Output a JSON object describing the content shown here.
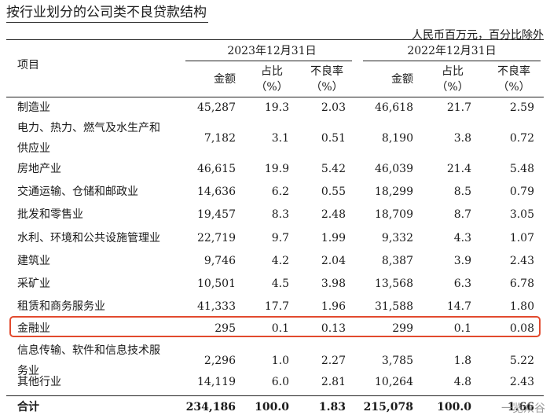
{
  "title": "按行业划分的公司类不良贷款结构",
  "unit_note": "人民币百万元，百分比除外",
  "header": {
    "item_label": "项目",
    "period_2023": "2023年12月31日",
    "period_2022": "2022年12月31日",
    "col_amount": "金额",
    "col_share_1": "占比",
    "col_share_2": "（%）",
    "col_npl": "不良率",
    "col_npl_2": "（%）"
  },
  "rows": [
    {
      "name": [
        "制造业"
      ],
      "a23": "45,287",
      "s23": "19.3",
      "n23": "2.03",
      "a22": "46,618",
      "s22": "21.7",
      "n22": "2.59"
    },
    {
      "name": [
        "电力、热力、燃气及水生产和",
        "供应业"
      ],
      "a23": "7,182",
      "s23": "3.1",
      "n23": "0.51",
      "a22": "8,190",
      "s22": "3.8",
      "n22": "0.72"
    },
    {
      "name": [
        "房地产业"
      ],
      "a23": "46,615",
      "s23": "19.9",
      "n23": "5.42",
      "a22": "46,039",
      "s22": "21.4",
      "n22": "5.48"
    },
    {
      "name": [
        "交通运输、仓储和邮政业"
      ],
      "a23": "14,636",
      "s23": "6.2",
      "n23": "0.55",
      "a22": "18,299",
      "s22": "8.5",
      "n22": "0.79"
    },
    {
      "name": [
        "批发和零售业"
      ],
      "a23": "19,457",
      "s23": "8.3",
      "n23": "2.48",
      "a22": "18,709",
      "s22": "8.7",
      "n22": "3.05"
    },
    {
      "name": [
        "水利、环境和公共设施管理业"
      ],
      "a23": "22,719",
      "s23": "9.7",
      "n23": "1.99",
      "a22": "9,332",
      "s22": "4.3",
      "n22": "1.07"
    },
    {
      "name": [
        "建筑业"
      ],
      "a23": "9,746",
      "s23": "4.2",
      "n23": "2.04",
      "a22": "8,387",
      "s22": "3.9",
      "n22": "2.43"
    },
    {
      "name": [
        "采矿业"
      ],
      "a23": "10,501",
      "s23": "4.5",
      "n23": "3.98",
      "a22": "13,568",
      "s22": "6.3",
      "n22": "6.78"
    },
    {
      "name": [
        "租赁和商务服务业"
      ],
      "a23": "41,333",
      "s23": "17.7",
      "n23": "1.96",
      "a22": "31,588",
      "s22": "14.7",
      "n22": "1.80"
    },
    {
      "name": [
        "金融业"
      ],
      "a23": "295",
      "s23": "0.1",
      "n23": "0.13",
      "a22": "299",
      "s22": "0.1",
      "n22": "0.08"
    },
    {
      "name": [
        "信息传输、软件和信息技术服",
        "务业"
      ],
      "a23": "2,296",
      "s23": "1.0",
      "n23": "2.27",
      "a22": "3,785",
      "s22": "1.8",
      "n22": "5.22"
    },
    {
      "name": [
        "其他行业"
      ],
      "a23": "14,119",
      "s23": "6.0",
      "n23": "2.81",
      "a22": "10,264",
      "s22": "4.8",
      "n22": "2.43"
    }
  ],
  "total": {
    "name": "合计",
    "a23": "234,186",
    "s23": "100.0",
    "n23": "1.83",
    "a22": "215,078",
    "s22": "100.0",
    "n22": "1.66"
  },
  "watermark": "一览众谷",
  "highlight_color": "#e24a2e"
}
